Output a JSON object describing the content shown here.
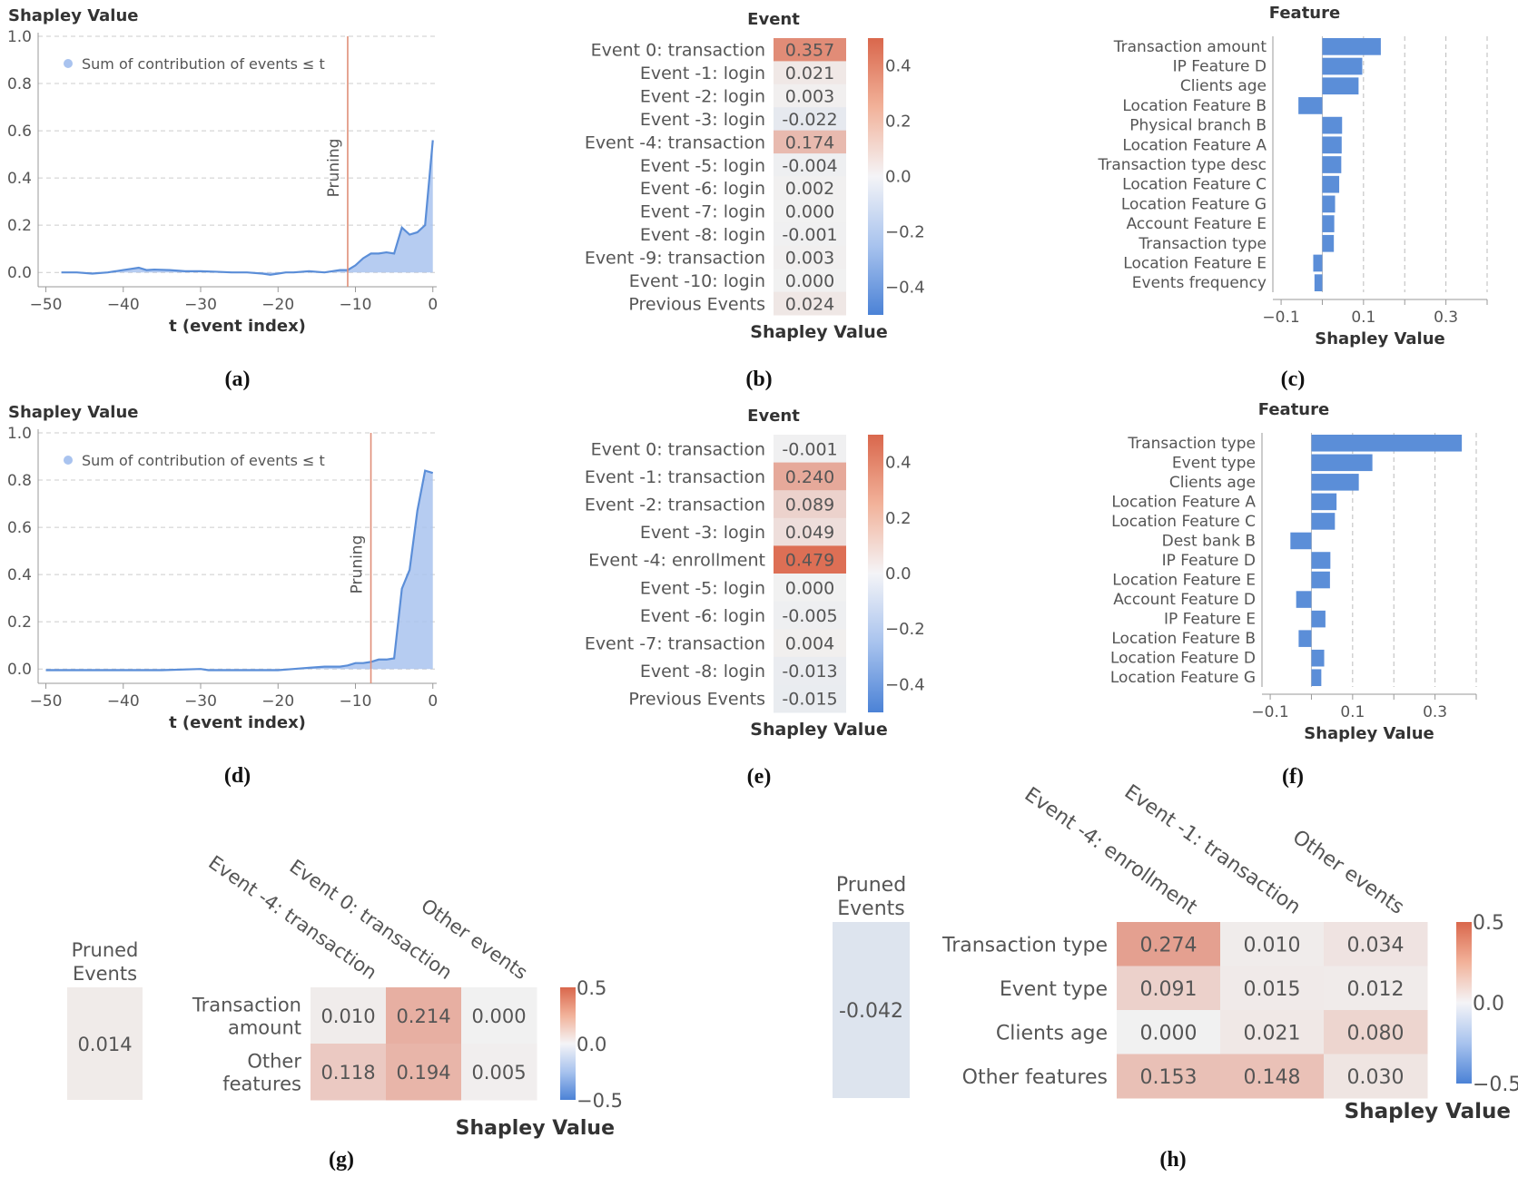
{
  "colors": {
    "line": "#5b8ed8",
    "fill": "#a9c3ef",
    "prune": "#e08f78",
    "bar": "#5b8ed8",
    "grid": "#cccccc"
  },
  "chart_data": [
    {
      "id": "a",
      "type": "area",
      "caption": "(a)",
      "ylabel": "Shapley Value",
      "xlabel": "t (event index)",
      "legend": "Sum of contribution of events ≤ t",
      "xticks": [
        -50,
        -40,
        -30,
        -20,
        -10,
        0
      ],
      "yticks": [
        0.0,
        0.2,
        0.4,
        0.6,
        0.8,
        1.0
      ],
      "xlim": [
        -51,
        0.5
      ],
      "ylim": [
        -0.03,
        1.0
      ],
      "pruning_label": "Pruning",
      "pruning_x": -11,
      "x": [
        -48,
        -46,
        -44,
        -42,
        -40,
        -39,
        -38,
        -37,
        -36,
        -34,
        -32,
        -30,
        -28,
        -26,
        -24,
        -22,
        -21,
        -20,
        -19,
        -18,
        -16,
        -14,
        -12,
        -11,
        -10,
        -9,
        -8,
        -7,
        -6,
        -5,
        -4,
        -3,
        -2,
        -1,
        0
      ],
      "y": [
        0.0,
        0.0,
        -0.005,
        0.0,
        0.01,
        0.015,
        0.02,
        0.01,
        0.012,
        0.01,
        0.005,
        0.005,
        0.003,
        0.0,
        0.0,
        -0.005,
        -0.01,
        -0.005,
        0.0,
        0.0,
        0.005,
        0.0,
        0.01,
        0.01,
        0.03,
        0.06,
        0.08,
        0.08,
        0.085,
        0.08,
        0.19,
        0.16,
        0.17,
        0.2,
        0.56
      ]
    },
    {
      "id": "b",
      "type": "heatmap_column",
      "caption": "(b)",
      "title": "Event",
      "xlabel": "Shapley Value",
      "rows": [
        "Event 0: transaction",
        "Event -1: login",
        "Event -2: login",
        "Event -3: login",
        "Event -4: transaction",
        "Event -5: login",
        "Event -6: login",
        "Event -7: login",
        "Event -8: login",
        "Event -9: transaction",
        "Event -10: login",
        "Previous Events"
      ],
      "values": [
        0.357,
        0.021,
        0.003,
        -0.022,
        0.174,
        -0.004,
        0.002,
        0.0,
        -0.001,
        0.003,
        0.0,
        0.024
      ],
      "labels": [
        "0.357",
        "0.021",
        "0.003",
        "-0.022",
        "0.174",
        "-0.004",
        "0.002",
        "0.000",
        "-0.001",
        "0.003",
        "0.000",
        "0.024"
      ],
      "colorbar_ticks": [
        0.4,
        0.2,
        0.0,
        -0.2,
        -0.4
      ],
      "colorbar_labels": [
        "0.4",
        "0.2",
        "0.0",
        "−0.2",
        "−0.4"
      ],
      "vmin": -0.5,
      "vmax": 0.5
    },
    {
      "id": "c",
      "type": "hbar",
      "caption": "(c)",
      "title": "Feature",
      "xlabel": "Shapley Value",
      "categories": [
        "Transaction amount",
        "IP Feature D",
        "Clients age",
        "Location Feature B",
        "Physical branch B",
        "Location Feature A",
        "Transaction type desc",
        "Location Feature C",
        "Location Feature G",
        "Account Feature E",
        "Transaction type",
        "Location Feature E",
        "Events frequency"
      ],
      "values": [
        0.142,
        0.097,
        0.088,
        -0.058,
        0.048,
        0.047,
        0.046,
        0.041,
        0.031,
        0.029,
        0.028,
        -0.022,
        -0.019
      ],
      "xticks": [
        -0.1,
        0.1,
        0.3
      ],
      "xtick_labels": [
        "−0.1",
        "0.1",
        "0.3"
      ],
      "xlim": [
        -0.12,
        0.4
      ]
    },
    {
      "id": "d",
      "type": "area",
      "caption": "(d)",
      "ylabel": "Shapley Value",
      "xlabel": "t (event index)",
      "legend": "Sum of contribution of events ≤ t",
      "xticks": [
        -50,
        -40,
        -30,
        -20,
        -10,
        0
      ],
      "yticks": [
        0.0,
        0.2,
        0.4,
        0.6,
        0.8,
        1.0
      ],
      "xlim": [
        -51,
        0.5
      ],
      "ylim": [
        -0.03,
        1.0
      ],
      "pruning_label": "Pruning",
      "pruning_x": -8,
      "x": [
        -50,
        -45,
        -40,
        -35,
        -30,
        -29,
        -28,
        -25,
        -20,
        -18,
        -16,
        -14,
        -12,
        -11,
        -10,
        -9,
        -8,
        -7,
        -6,
        -5,
        -4,
        -3,
        -2,
        -1,
        0
      ],
      "y": [
        -0.005,
        -0.005,
        -0.005,
        -0.005,
        0.0,
        -0.005,
        -0.005,
        -0.005,
        -0.005,
        0.0,
        0.005,
        0.01,
        0.01,
        0.015,
        0.025,
        0.025,
        0.03,
        0.04,
        0.04,
        0.045,
        0.34,
        0.42,
        0.67,
        0.84,
        0.83
      ]
    },
    {
      "id": "e",
      "type": "heatmap_column",
      "caption": "(e)",
      "title": "Event",
      "xlabel": "Shapley Value",
      "rows": [
        "Event 0: transaction",
        "Event -1: transaction",
        "Event -2: transaction",
        "Event -3: login",
        "Event -4: enrollment",
        "Event -5: login",
        "Event -6: login",
        "Event -7: transaction",
        "Event -8: login",
        "Previous Events"
      ],
      "values": [
        -0.001,
        0.24,
        0.089,
        0.049,
        0.479,
        0.0,
        -0.005,
        0.004,
        -0.013,
        -0.015
      ],
      "labels": [
        "-0.001",
        "0.240",
        "0.089",
        "0.049",
        "0.479",
        "0.000",
        "-0.005",
        "0.004",
        "-0.013",
        "-0.015"
      ],
      "colorbar_ticks": [
        0.4,
        0.2,
        0.0,
        -0.2,
        -0.4
      ],
      "colorbar_labels": [
        "0.4",
        "0.2",
        "0.0",
        "−0.2",
        "−0.4"
      ],
      "vmin": -0.5,
      "vmax": 0.5
    },
    {
      "id": "f",
      "type": "hbar",
      "caption": "(f)",
      "title": "Feature",
      "xlabel": "Shapley Value",
      "categories": [
        "Transaction type",
        "Event type",
        "Clients age",
        "Location Feature A",
        "Location Feature C",
        "Dest bank B",
        "IP Feature D",
        "Location Feature E",
        "Account Feature D",
        "IP Feature E",
        "Location Feature B",
        "Location Feature D",
        "Location Feature G"
      ],
      "values": [
        0.365,
        0.148,
        0.115,
        0.061,
        0.057,
        -0.051,
        0.046,
        0.045,
        -0.037,
        0.034,
        -0.031,
        0.031,
        0.024
      ],
      "xticks": [
        -0.1,
        0.1,
        0.3
      ],
      "xtick_labels": [
        "−0.1",
        "0.1",
        "0.3"
      ],
      "xlim": [
        -0.12,
        0.4
      ]
    },
    {
      "id": "g",
      "type": "heatmap",
      "caption": "(g)",
      "colorbar_title": "Shapley Value",
      "pruned_label": [
        "Pruned",
        "Events"
      ],
      "pruned_value": 0.014,
      "pruned_text": "0.014",
      "columns": [
        "Event -4: transaction",
        "Event 0: transaction",
        "Other events"
      ],
      "rows": [
        [
          "Transaction",
          "amount"
        ],
        [
          "Other",
          "features"
        ]
      ],
      "values": [
        [
          0.01,
          0.214,
          0.0
        ],
        [
          0.118,
          0.194,
          0.005
        ]
      ],
      "labels": [
        [
          "0.010",
          "0.214",
          "0.000"
        ],
        [
          "0.118",
          "0.194",
          "0.005"
        ]
      ],
      "colorbar_labels": [
        "0.5",
        "0.0",
        "−0.5"
      ],
      "vmin": -0.5,
      "vmax": 0.5
    },
    {
      "id": "h",
      "type": "heatmap",
      "caption": "(h)",
      "colorbar_title": "Shapley Value",
      "pruned_label": [
        "Pruned",
        "Events"
      ],
      "pruned_value": -0.042,
      "pruned_text": "-0.042",
      "columns": [
        "Event -4: enrollment",
        "Event -1: transaction",
        "Other events"
      ],
      "rows": [
        [
          "Transaction type"
        ],
        [
          "Event type"
        ],
        [
          "Clients age"
        ],
        [
          "Other features"
        ]
      ],
      "values": [
        [
          0.274,
          0.01,
          0.034
        ],
        [
          0.091,
          0.015,
          0.012
        ],
        [
          0.0,
          0.021,
          0.08
        ],
        [
          0.153,
          0.148,
          0.03
        ]
      ],
      "labels": [
        [
          "0.274",
          "0.010",
          "0.034"
        ],
        [
          "0.091",
          "0.015",
          "0.012"
        ],
        [
          "0.000",
          "0.021",
          "0.080"
        ],
        [
          "0.153",
          "0.148",
          "0.030"
        ]
      ],
      "colorbar_labels": [
        "0.5",
        "0.0",
        "−0.5"
      ],
      "vmin": -0.5,
      "vmax": 0.5
    }
  ]
}
